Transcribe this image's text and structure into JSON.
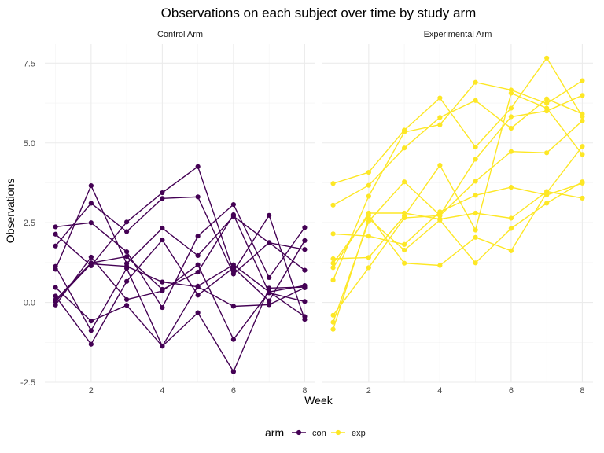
{
  "chart_data": {
    "type": "line",
    "title": "Observations on each subject over time by study arm",
    "xlabel": "Week",
    "ylabel": "Observations",
    "xlim": [
      0.7,
      8.3
    ],
    "ylim": [
      -2.5,
      8.1
    ],
    "x_ticks": [
      2,
      4,
      6,
      8
    ],
    "y_ticks": [
      -2.5,
      0.0,
      2.5,
      5.0,
      7.5
    ],
    "y_tick_labels": [
      "-2.5",
      "0.0",
      "2.5",
      "5.0",
      "7.5"
    ],
    "grid": true,
    "legend": {
      "title": "arm",
      "placement": "bottom",
      "entries": [
        {
          "label": "con",
          "color": "#440154"
        },
        {
          "label": "exp",
          "color": "#FDE725"
        }
      ]
    },
    "x": [
      1,
      2,
      3,
      4,
      5,
      6,
      7,
      8
    ],
    "panels": [
      {
        "strip": "Control Arm",
        "arm": "con",
        "color": "#440154",
        "subjects": [
          {
            "values": [
              0.2,
              -1.31,
              0.66,
              1.96,
              0.23,
              1.09,
              0.05,
              1.94
            ]
          },
          {
            "values": [
              1.13,
              -0.88,
              1.07,
              -1.37,
              0.51,
              1.18,
              0.33,
              0.53
            ]
          },
          {
            "values": [
              1.77,
              3.11,
              2.22,
              3.26,
              3.31,
              0.89,
              1.88,
              1.01
            ]
          },
          {
            "values": [
              1.04,
              3.66,
              1.22,
              2.33,
              1.47,
              2.7,
              1.87,
              1.66
            ]
          },
          {
            "values": [
              0.47,
              -0.58,
              -0.09,
              -1.37,
              -0.32,
              -2.17,
              0.45,
              0.48
            ]
          },
          {
            "values": [
              2.37,
              2.5,
              1.59,
              -0.16,
              2.08,
              3.07,
              0.78,
              2.35
            ]
          },
          {
            "values": [
              0.03,
              1.21,
              1.13,
              0.64,
              0.49,
              -0.12,
              -0.07,
              0.46
            ]
          },
          {
            "values": [
              -0.08,
              1.42,
              0.09,
              0.36,
              1.18,
              -1.16,
              0.33,
              -0.44
            ]
          },
          {
            "values": [
              0.08,
              1.24,
              1.44,
              0.41,
              0.95,
              2.75,
              0.3,
              0.03
            ]
          },
          {
            "values": [
              2.14,
              1.15,
              2.52,
              3.44,
              4.26,
              0.97,
              2.73,
              -0.53
            ]
          }
        ]
      },
      {
        "strip": "Experimental Arm",
        "arm": "exp",
        "color": "#FDE725",
        "subjects": [
          {
            "values": [
              3.05,
              3.67,
              4.84,
              5.8,
              6.33,
              5.46,
              6.38,
              5.91
            ]
          },
          {
            "values": [
              -0.84,
              2.63,
              1.64,
              2.58,
              1.24,
              2.32,
              3.11,
              3.78
            ]
          },
          {
            "values": [
              2.15,
              2.08,
              1.82,
              2.84,
              3.36,
              3.61,
              3.37,
              3.74
            ]
          },
          {
            "values": [
              -0.62,
              2.54,
              3.78,
              2.73,
              4.49,
              5.82,
              6.0,
              6.49
            ]
          },
          {
            "values": [
              0.7,
              3.33,
              5.34,
              5.57,
              6.9,
              6.66,
              6.24,
              6.95
            ]
          },
          {
            "values": [
              3.73,
              4.08,
              5.4,
              6.41,
              4.87,
              6.09,
              7.66,
              5.83
            ]
          },
          {
            "values": [
              1.37,
              1.41,
              2.71,
              4.3,
              2.27,
              6.56,
              6.09,
              4.64
            ]
          },
          {
            "values": [
              1.09,
              2.8,
              2.8,
              2.61,
              2.8,
              2.64,
              3.48,
              3.27
            ]
          },
          {
            "values": [
              -0.4,
              1.09,
              2.65,
              2.72,
              3.8,
              4.73,
              4.69,
              5.69
            ]
          },
          {
            "values": [
              1.23,
              2.73,
              1.23,
              1.16,
              2.04,
              1.62,
              3.44,
              4.89
            ]
          }
        ]
      }
    ]
  }
}
